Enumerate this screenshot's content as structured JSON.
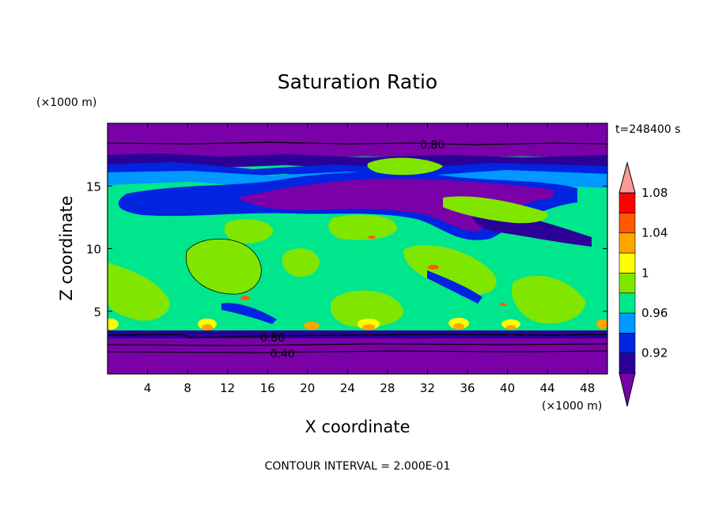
{
  "chart_data": {
    "type": "heatmap",
    "title": "Saturation Ratio",
    "xlabel": "X coordinate",
    "ylabel": "Z coordinate",
    "x_unit": "(×1000 m)",
    "y_unit": "(×1000 m)",
    "time_label": "t=248400 s",
    "footer": "CONTOUR INTERVAL = 2.000E-01",
    "xlim": [
      0,
      50
    ],
    "ylim": [
      0,
      20
    ],
    "x_ticks": [
      4,
      8,
      12,
      16,
      20,
      24,
      28,
      32,
      36,
      40,
      44,
      48
    ],
    "y_ticks": [
      5,
      10,
      15
    ],
    "colorbar_labels": [
      "0.92",
      "0.96",
      "1",
      "1.04",
      "1.08"
    ],
    "colorbar_colors": [
      "#7a00a8",
      "#2b0096",
      "#0024e0",
      "#0099ff",
      "#00e68c",
      "#80e600",
      "#ffff00",
      "#ffa500",
      "#ff5a00",
      "#ff0000",
      "#ff9999"
    ],
    "contour_labels": [
      {
        "text": "0.80",
        "x": 32.5,
        "z": 18.3
      },
      {
        "text": "0.80",
        "x": 16.5,
        "z": 2.9
      },
      {
        "text": "0.40",
        "x": 17.5,
        "z": 1.6
      }
    ]
  }
}
